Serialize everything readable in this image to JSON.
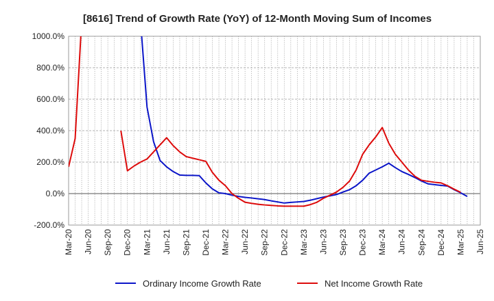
{
  "chart_data": {
    "type": "line",
    "title": "[8616]  Trend of Growth Rate (YoY) of 12-Month Moving Sum of Incomes",
    "ylim": [
      -200,
      1000
    ],
    "yticks": [
      -200,
      0,
      200,
      400,
      600,
      800,
      1000
    ],
    "ytick_labels": [
      "-200.0%",
      "0.0%",
      "200.0%",
      "400.0%",
      "600.0%",
      "800.0%",
      "1000.0%"
    ],
    "xticks": [
      "Mar-20",
      "Jun-20",
      "Sep-20",
      "Dec-20",
      "Mar-21",
      "Jun-21",
      "Sep-21",
      "Dec-21",
      "Mar-22",
      "Jun-22",
      "Sep-22",
      "Dec-22",
      "Mar-23",
      "Jun-23",
      "Sep-23",
      "Dec-23",
      "Mar-24",
      "Jun-24",
      "Sep-24",
      "Dec-24",
      "Mar-25",
      "Jun-25"
    ],
    "grid": true,
    "legend_position": "bottom",
    "colors": {
      "ordinary": "#0a14c8",
      "net": "#dd0a0a"
    },
    "series": [
      {
        "name": "Ordinary Income Growth Rate",
        "color": "#0a14c8",
        "points": [
          [
            "Feb-21",
            1100
          ],
          [
            "Mar-21",
            550
          ],
          [
            "Apr-21",
            330
          ],
          [
            "May-21",
            210
          ],
          [
            "Jun-21",
            170
          ],
          [
            "Jul-21",
            140
          ],
          [
            "Aug-21",
            118
          ],
          [
            "Sep-21",
            116
          ],
          [
            "Oct-21",
            116
          ],
          [
            "Nov-21",
            114
          ],
          [
            "Dec-21",
            68
          ],
          [
            "Jan-22",
            30
          ],
          [
            "Feb-22",
            5
          ],
          [
            "Mar-22",
            0
          ],
          [
            "Apr-22",
            -10
          ],
          [
            "May-22",
            -18
          ],
          [
            "Jun-22",
            -24
          ],
          [
            "Jul-22",
            -28
          ],
          [
            "Aug-22",
            -33
          ],
          [
            "Sep-22",
            -38
          ],
          [
            "Oct-22",
            -46
          ],
          [
            "Nov-22",
            -53
          ],
          [
            "Dec-22",
            -60
          ],
          [
            "Jan-23",
            -56
          ],
          [
            "Feb-23",
            -53
          ],
          [
            "Mar-23",
            -50
          ],
          [
            "Apr-23",
            -42
          ],
          [
            "May-23",
            -32
          ],
          [
            "Jun-23",
            -22
          ],
          [
            "Jul-23",
            -14
          ],
          [
            "Aug-23",
            -6
          ],
          [
            "Sep-23",
            10
          ],
          [
            "Oct-23",
            25
          ],
          [
            "Nov-23",
            50
          ],
          [
            "Dec-23",
            85
          ],
          [
            "Jan-24",
            130
          ],
          [
            "Feb-24",
            150
          ],
          [
            "Mar-24",
            170
          ],
          [
            "Apr-24",
            193
          ],
          [
            "May-24",
            165
          ],
          [
            "Jun-24",
            140
          ],
          [
            "Jul-24",
            122
          ],
          [
            "Aug-24",
            102
          ],
          [
            "Sep-24",
            80
          ],
          [
            "Oct-24",
            62
          ],
          [
            "Nov-24",
            57
          ],
          [
            "Dec-24",
            52
          ],
          [
            "Jan-25",
            48
          ],
          [
            "Feb-25",
            25
          ],
          [
            "Mar-25",
            5
          ],
          [
            "Apr-25",
            -18
          ]
        ]
      },
      {
        "name": "Net Income Growth Rate",
        "color": "#dd0a0a",
        "segments": [
          [
            [
              "Mar-20",
              170
            ],
            [
              "Apr-20",
              350
            ],
            [
              "May-20",
              1100
            ]
          ],
          [
            [
              "Nov-20",
              400
            ],
            [
              "Dec-20",
              145
            ],
            [
              "Jan-21",
              175
            ],
            [
              "Feb-21",
              200
            ],
            [
              "Mar-21",
              220
            ],
            [
              "Apr-21",
              265
            ],
            [
              "May-21",
              310
            ],
            [
              "Jun-21",
              355
            ],
            [
              "Jul-21",
              305
            ],
            [
              "Aug-21",
              265
            ],
            [
              "Sep-21",
              235
            ],
            [
              "Oct-21",
              225
            ],
            [
              "Nov-21",
              215
            ],
            [
              "Dec-21",
              205
            ],
            [
              "Jan-22",
              135
            ],
            [
              "Feb-22",
              85
            ],
            [
              "Mar-22",
              50
            ],
            [
              "Apr-22",
              0
            ],
            [
              "May-22",
              -30
            ],
            [
              "Jun-22",
              -55
            ],
            [
              "Jul-22",
              -62
            ],
            [
              "Aug-22",
              -68
            ],
            [
              "Sep-22",
              -72
            ],
            [
              "Oct-22",
              -75
            ],
            [
              "Nov-22",
              -78
            ],
            [
              "Dec-22",
              -80
            ],
            [
              "Jan-23",
              -80
            ],
            [
              "Feb-23",
              -80
            ],
            [
              "Mar-23",
              -80
            ],
            [
              "Apr-23",
              -70
            ],
            [
              "May-23",
              -55
            ],
            [
              "Jun-23",
              -30
            ],
            [
              "Jul-23",
              -10
            ],
            [
              "Aug-23",
              10
            ],
            [
              "Sep-23",
              40
            ],
            [
              "Oct-23",
              80
            ],
            [
              "Nov-23",
              150
            ],
            [
              "Dec-23",
              250
            ],
            [
              "Jan-24",
              310
            ],
            [
              "Feb-24",
              360
            ],
            [
              "Mar-24",
              420
            ],
            [
              "Apr-24",
              320
            ],
            [
              "May-24",
              250
            ],
            [
              "Jun-24",
              200
            ],
            [
              "Jul-24",
              150
            ],
            [
              "Aug-24",
              110
            ],
            [
              "Sep-24",
              85
            ],
            [
              "Oct-24",
              78
            ],
            [
              "Nov-24",
              72
            ],
            [
              "Dec-24",
              68
            ],
            [
              "Jan-25",
              50
            ],
            [
              "Feb-25",
              28
            ],
            [
              "Mar-25",
              8
            ]
          ]
        ]
      }
    ]
  }
}
